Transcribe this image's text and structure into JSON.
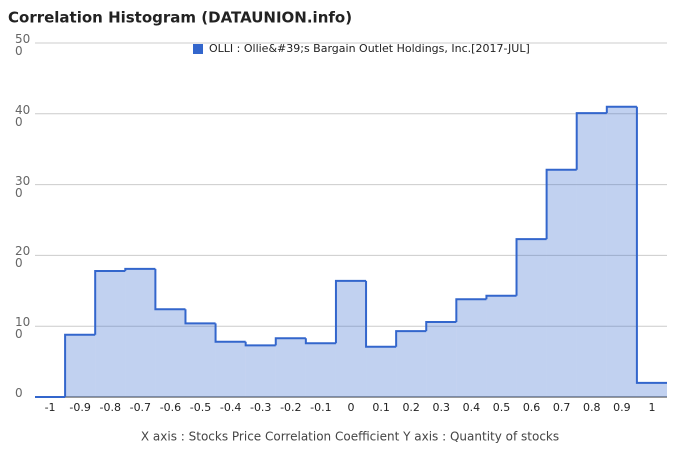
{
  "chart_data": {
    "type": "histogram",
    "title": "Correlation Histogram (DATAUNION.info)",
    "x_label": "X axis : Stocks Price Correlation Coefficient  Y axis : Quantity of stocks",
    "bins": [
      -1.05,
      -0.95,
      -0.85,
      -0.75,
      -0.65,
      -0.55,
      -0.45,
      -0.35,
      -0.25,
      -0.15,
      -0.05,
      0.05,
      0.15,
      0.25,
      0.35,
      0.45,
      0.55,
      0.65,
      0.75,
      0.85,
      0.95,
      1.05
    ],
    "series": [
      {
        "name": "OLLI : Ollie&#39;s Bargain Outlet Holdings, Inc.[2017-JUL]",
        "color": "#3366cc",
        "values": [
          0,
          88,
          178,
          181,
          124,
          104,
          78,
          73,
          83,
          76,
          164,
          71,
          93,
          106,
          138,
          143,
          223,
          321,
          401,
          410,
          20
        ]
      }
    ],
    "xlim": [
      -1.05,
      1.05
    ],
    "xticks": [
      -1,
      -0.9,
      -0.8,
      -0.7,
      -0.6,
      -0.5,
      -0.4,
      -0.3,
      -0.2,
      -0.1,
      0,
      0.1,
      0.2,
      0.3,
      0.4,
      0.5,
      0.6,
      0.7,
      0.8,
      0.9,
      1
    ],
    "ylim": [
      0,
      500
    ],
    "yticks": [
      0,
      100,
      200,
      300,
      400,
      500
    ],
    "grid": true
  }
}
